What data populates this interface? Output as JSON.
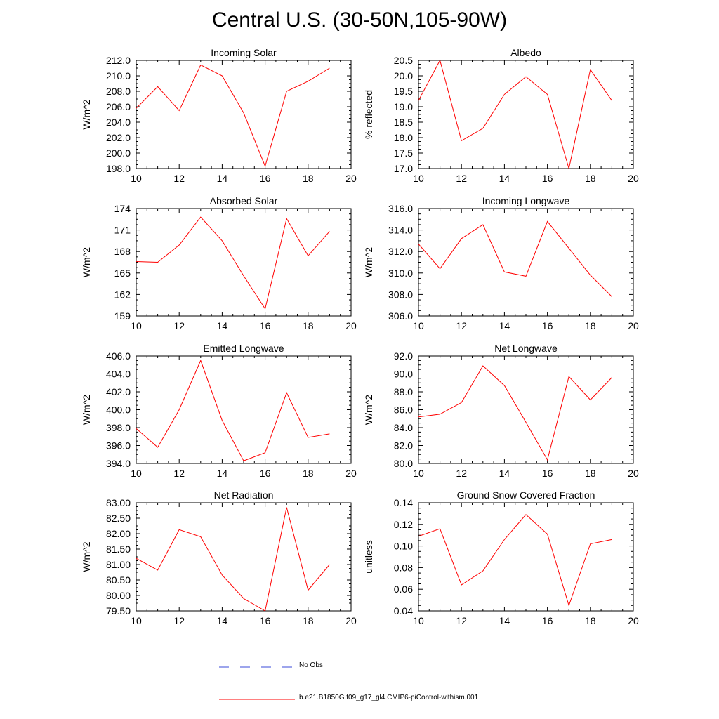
{
  "title": "Central U.S. (30-50N,105-90W)",
  "colors": {
    "model": "#ff0000",
    "obs": "#3b4bd8",
    "axis": "#000000"
  },
  "legend": {
    "obs_label": "No Obs",
    "model_label": "b.e21.B1850G.f09_g17_gl4.CMIP6-piControl-withism.001"
  },
  "chart_data": [
    {
      "type": "line",
      "title": "Incoming Solar",
      "ylabel": "W/m^2",
      "xlim": [
        10,
        20
      ],
      "ylim": [
        198,
        212
      ],
      "x_ticks": [
        10,
        12,
        14,
        16,
        18,
        20
      ],
      "y_ticks": [
        "198.0",
        "200.0",
        "202.0",
        "204.0",
        "206.0",
        "208.0",
        "210.0",
        "212.0"
      ],
      "y_tick_values": [
        198,
        200,
        202,
        204,
        206,
        208,
        210,
        212
      ],
      "series": [
        {
          "x": [
            10,
            11,
            12,
            13,
            14,
            15,
            16,
            17,
            18,
            19
          ],
          "y": [
            205.8,
            208.6,
            205.5,
            211.4,
            210.0,
            205.2,
            198.3,
            208.0,
            209.3,
            211.0
          ]
        }
      ]
    },
    {
      "type": "line",
      "title": "Albedo",
      "ylabel": "% reflected",
      "xlim": [
        10,
        20
      ],
      "ylim": [
        17,
        20.5
      ],
      "x_ticks": [
        10,
        12,
        14,
        16,
        18,
        20
      ],
      "y_ticks": [
        "17.0",
        "17.5",
        "18.0",
        "18.5",
        "19.0",
        "19.5",
        "20.0",
        "20.5"
      ],
      "y_tick_values": [
        17,
        17.5,
        18,
        18.5,
        19,
        19.5,
        20,
        20.5
      ],
      "series": [
        {
          "x": [
            10,
            11,
            12,
            13,
            14,
            15,
            16,
            17,
            18,
            19
          ],
          "y": [
            19.2,
            20.5,
            17.9,
            18.3,
            19.4,
            19.97,
            19.4,
            17.0,
            20.2,
            19.2
          ]
        }
      ]
    },
    {
      "type": "line",
      "title": "Absorbed Solar",
      "ylabel": "W/m^2",
      "xlim": [
        10,
        20
      ],
      "ylim": [
        159,
        174
      ],
      "x_ticks": [
        10,
        12,
        14,
        16,
        18,
        20
      ],
      "y_ticks": [
        "159",
        "162",
        "165",
        "168",
        "171",
        "174"
      ],
      "y_tick_values": [
        159,
        162,
        165,
        168,
        171,
        174
      ],
      "series": [
        {
          "x": [
            10,
            11,
            12,
            13,
            14,
            15,
            16,
            17,
            18,
            19
          ],
          "y": [
            166.6,
            166.5,
            168.9,
            172.8,
            169.5,
            164.6,
            160.0,
            172.6,
            167.4,
            170.8
          ]
        }
      ]
    },
    {
      "type": "line",
      "title": "Incoming Longwave",
      "ylabel": "W/m^2",
      "xlim": [
        10,
        20
      ],
      "ylim": [
        306,
        316
      ],
      "x_ticks": [
        10,
        12,
        14,
        16,
        18,
        20
      ],
      "y_ticks": [
        "306.0",
        "308.0",
        "310.0",
        "312.0",
        "314.0",
        "316.0"
      ],
      "y_tick_values": [
        306,
        308,
        310,
        312,
        314,
        316
      ],
      "series": [
        {
          "x": [
            10,
            11,
            12,
            13,
            14,
            15,
            16,
            17,
            18,
            19
          ],
          "y": [
            312.7,
            310.4,
            313.2,
            314.5,
            310.1,
            309.7,
            314.8,
            312.3,
            309.8,
            307.8
          ]
        }
      ]
    },
    {
      "type": "line",
      "title": "Emitted Longwave",
      "ylabel": "W/m^2",
      "xlim": [
        10,
        20
      ],
      "ylim": [
        394,
        406
      ],
      "x_ticks": [
        10,
        12,
        14,
        16,
        18,
        20
      ],
      "y_ticks": [
        "394.0",
        "396.0",
        "398.0",
        "400.0",
        "402.0",
        "404.0",
        "406.0"
      ],
      "y_tick_values": [
        394,
        396,
        398,
        400,
        402,
        404,
        406
      ],
      "series": [
        {
          "x": [
            10,
            11,
            12,
            13,
            14,
            15,
            16,
            17,
            18,
            19
          ],
          "y": [
            397.9,
            395.8,
            400.0,
            405.5,
            398.8,
            394.3,
            395.2,
            401.9,
            396.9,
            397.3
          ]
        }
      ]
    },
    {
      "type": "line",
      "title": "Net Longwave",
      "ylabel": "W/m^2",
      "xlim": [
        10,
        20
      ],
      "ylim": [
        80,
        92
      ],
      "x_ticks": [
        10,
        12,
        14,
        16,
        18,
        20
      ],
      "y_ticks": [
        "80.0",
        "82.0",
        "84.0",
        "86.0",
        "88.0",
        "90.0",
        "92.0"
      ],
      "y_tick_values": [
        80,
        82,
        84,
        86,
        88,
        90,
        92
      ],
      "series": [
        {
          "x": [
            10,
            11,
            12,
            13,
            14,
            15,
            16,
            17,
            18,
            19
          ],
          "y": [
            85.2,
            85.5,
            86.8,
            90.9,
            88.7,
            84.6,
            80.4,
            89.7,
            87.1,
            89.6
          ]
        }
      ]
    },
    {
      "type": "line",
      "title": "Net Radiation",
      "ylabel": "W/m^2",
      "xlim": [
        10,
        20
      ],
      "ylim": [
        79.5,
        83
      ],
      "x_ticks": [
        10,
        12,
        14,
        16,
        18,
        20
      ],
      "y_ticks": [
        "79.50",
        "80.00",
        "80.50",
        "81.00",
        "81.50",
        "82.00",
        "82.50",
        "83.00"
      ],
      "y_tick_values": [
        79.5,
        80,
        80.5,
        81,
        81.5,
        82,
        82.5,
        83
      ],
      "series": [
        {
          "x": [
            10,
            11,
            12,
            13,
            14,
            15,
            16,
            17,
            18,
            19
          ],
          "y": [
            81.2,
            80.82,
            82.13,
            81.9,
            80.66,
            79.9,
            79.5,
            82.85,
            80.17,
            81.0
          ]
        }
      ]
    },
    {
      "type": "line",
      "title": "Ground Snow Covered Fraction",
      "ylabel": "unitless",
      "xlim": [
        10,
        20
      ],
      "ylim": [
        0.04,
        0.14
      ],
      "x_ticks": [
        10,
        12,
        14,
        16,
        18,
        20
      ],
      "y_ticks": [
        "0.04",
        "0.06",
        "0.08",
        "0.10",
        "0.12",
        "0.14"
      ],
      "y_tick_values": [
        0.04,
        0.06,
        0.08,
        0.1,
        0.12,
        0.14
      ],
      "series": [
        {
          "x": [
            10,
            11,
            12,
            13,
            14,
            15,
            16,
            17,
            18,
            19
          ],
          "y": [
            0.109,
            0.116,
            0.064,
            0.077,
            0.106,
            0.129,
            0.111,
            0.045,
            0.102,
            0.106
          ]
        }
      ]
    }
  ]
}
